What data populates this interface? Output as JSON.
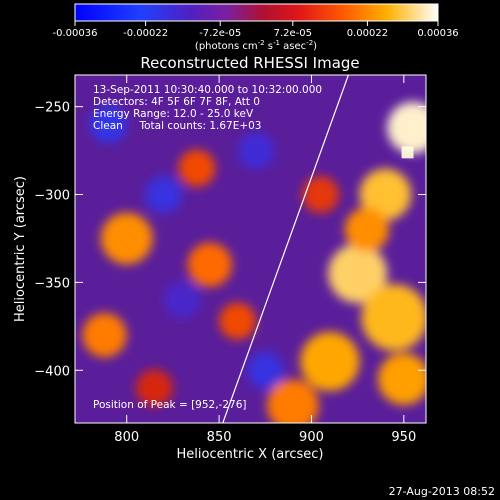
{
  "chart_data": {
    "type": "heatmap",
    "title": "Reconstructed RHESSI Image",
    "xlabel": "Heliocentric X (arcsec)",
    "ylabel": "Heliocentric Y (arcsec)",
    "xlim": [
      772,
      962
    ],
    "ylim": [
      -430,
      -232
    ],
    "x_ticks": [
      800,
      850,
      900,
      950
    ],
    "y_ticks": [
      -250,
      -300,
      -350,
      -400
    ],
    "colorbar": {
      "range": [
        -0.00036,
        0.00036
      ],
      "ticks": [
        {
          "value": -0.00036,
          "label": "-0.00036"
        },
        {
          "value": -0.00022,
          "label": "-0.00022"
        },
        {
          "value": -7.2e-05,
          "label": "-7.2e-05"
        },
        {
          "value": 7.2e-05,
          "label": "7.2e-05"
        },
        {
          "value": 0.00022,
          "label": "0.00022"
        },
        {
          "value": 0.00036,
          "label": "0.00036"
        }
      ],
      "unit_main": "(photons cm",
      "unit_sup1": "-2",
      "unit_mid": " s",
      "unit_sup2": "-1",
      "unit_mid2": " asec",
      "unit_sup3": "-2",
      "unit_end": ")"
    },
    "annotations": [
      "13-Sep-2011 10:30:40.000 to 10:32:00.000",
      "Detectors: 4F 5F 6F 7F 8F, Att 0",
      "Energy Range: 12.0 - 25.0 keV",
      "Clean     Total counts: 1.67E+03"
    ],
    "peak_label": "Position of Peak = [952,-276]",
    "peak": {
      "x": 952,
      "y": -276
    },
    "limb_line": [
      [
        852,
        -430
      ],
      [
        920,
        -232
      ]
    ],
    "blobs": [
      {
        "x": 955,
        "y": -262,
        "r": 14,
        "v": 0.00034
      },
      {
        "x": 940,
        "y": -300,
        "r": 14,
        "v": 0.00028
      },
      {
        "x": 925,
        "y": -345,
        "r": 16,
        "v": 0.0003
      },
      {
        "x": 945,
        "y": -370,
        "r": 18,
        "v": 0.00027
      },
      {
        "x": 950,
        "y": -405,
        "r": 14,
        "v": 0.00024
      },
      {
        "x": 910,
        "y": -395,
        "r": 16,
        "v": 0.00025
      },
      {
        "x": 890,
        "y": -420,
        "r": 14,
        "v": 0.0002
      },
      {
        "x": 930,
        "y": -320,
        "r": 12,
        "v": 0.00022
      },
      {
        "x": 905,
        "y": -300,
        "r": 10,
        "v": 0.00012
      },
      {
        "x": 800,
        "y": -325,
        "r": 14,
        "v": 0.00022
      },
      {
        "x": 788,
        "y": -380,
        "r": 12,
        "v": 0.0002
      },
      {
        "x": 838,
        "y": -285,
        "r": 10,
        "v": 0.00014
      },
      {
        "x": 845,
        "y": -340,
        "r": 12,
        "v": 0.00018
      },
      {
        "x": 860,
        "y": -372,
        "r": 10,
        "v": 0.00014
      },
      {
        "x": 815,
        "y": -410,
        "r": 10,
        "v": 0.0001
      },
      {
        "x": 790,
        "y": -260,
        "r": 10,
        "v": -0.00018
      },
      {
        "x": 820,
        "y": -300,
        "r": 10,
        "v": -0.00016
      },
      {
        "x": 870,
        "y": -275,
        "r": 10,
        "v": -0.00014
      },
      {
        "x": 875,
        "y": -400,
        "r": 10,
        "v": -0.00016
      },
      {
        "x": 830,
        "y": -360,
        "r": 10,
        "v": -0.00012
      }
    ]
  },
  "footer_timestamp": "27-Aug-2013 08:52"
}
